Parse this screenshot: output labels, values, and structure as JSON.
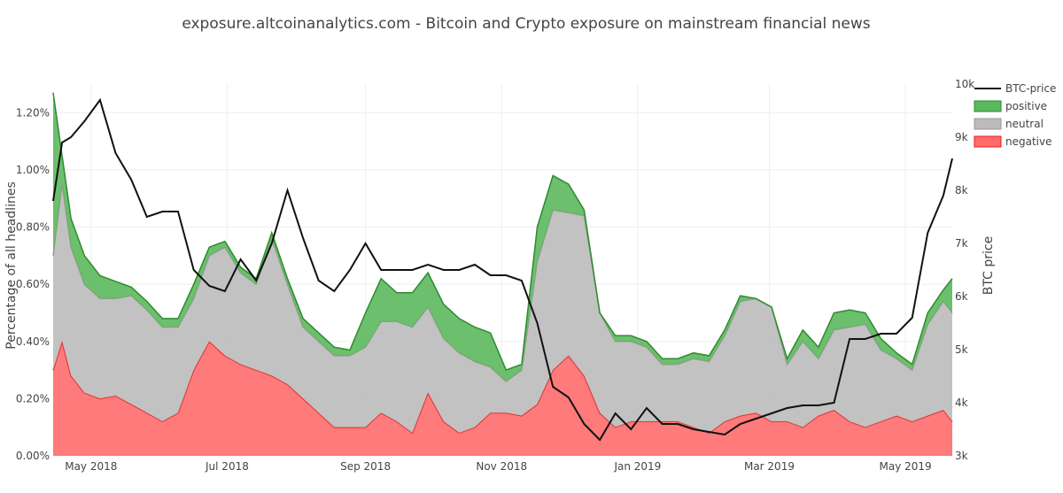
{
  "chart_data": {
    "type": "area",
    "title": "exposure.altcoinanalytics.com - Bitcoin and Crypto exposure on mainstream financial news",
    "ylabel": "Percentage of all headlines",
    "y2label": "BTC price",
    "x_ticks": [
      "May 2018",
      "Jul 2018",
      "Sep 2018",
      "Nov 2018",
      "Jan 2019",
      "Mar 2019",
      "May 2019"
    ],
    "y_ticks": [
      "0.00%",
      "0.20%",
      "0.40%",
      "0.60%",
      "0.80%",
      "1.00%",
      "1.20%"
    ],
    "y2_ticks": [
      "3k",
      "4k",
      "5k",
      "6k",
      "7k",
      "8k",
      "9k",
      "10k"
    ],
    "x_range": [
      "2018-04-14",
      "2019-05-22"
    ],
    "y_range": [
      0,
      1.3
    ],
    "y2_range": [
      3000,
      10000
    ],
    "x_tick_dates": [
      "2018-05-01",
      "2018-07-01",
      "2018-09-01",
      "2018-11-01",
      "2019-01-01",
      "2019-03-01",
      "2019-05-01"
    ],
    "legend_position": "top-right",
    "grid": true,
    "dates": [
      "2018-04-14",
      "2018-04-18",
      "2018-04-22",
      "2018-04-28",
      "2018-05-05",
      "2018-05-12",
      "2018-05-19",
      "2018-05-26",
      "2018-06-02",
      "2018-06-09",
      "2018-06-16",
      "2018-06-23",
      "2018-06-30",
      "2018-07-07",
      "2018-07-14",
      "2018-07-21",
      "2018-07-28",
      "2018-08-04",
      "2018-08-11",
      "2018-08-18",
      "2018-08-25",
      "2018-09-01",
      "2018-09-08",
      "2018-09-15",
      "2018-09-22",
      "2018-09-29",
      "2018-10-06",
      "2018-10-13",
      "2018-10-20",
      "2018-10-27",
      "2018-11-03",
      "2018-11-10",
      "2018-11-17",
      "2018-11-24",
      "2018-12-01",
      "2018-12-08",
      "2018-12-15",
      "2018-12-22",
      "2018-12-29",
      "2019-01-05",
      "2019-01-12",
      "2019-01-19",
      "2019-01-26",
      "2019-02-02",
      "2019-02-09",
      "2019-02-16",
      "2019-02-23",
      "2019-03-02",
      "2019-03-09",
      "2019-03-16",
      "2019-03-23",
      "2019-03-30",
      "2019-04-06",
      "2019-04-13",
      "2019-04-20",
      "2019-04-27",
      "2019-05-04",
      "2019-05-11",
      "2019-05-18",
      "2019-05-22"
    ],
    "series": [
      {
        "name": "negative",
        "color": "#ff6b6b",
        "values": [
          0.3,
          0.4,
          0.28,
          0.22,
          0.2,
          0.21,
          0.18,
          0.15,
          0.12,
          0.15,
          0.3,
          0.4,
          0.35,
          0.32,
          0.3,
          0.28,
          0.25,
          0.2,
          0.15,
          0.1,
          0.1,
          0.1,
          0.15,
          0.12,
          0.08,
          0.22,
          0.12,
          0.08,
          0.1,
          0.15,
          0.15,
          0.14,
          0.18,
          0.3,
          0.35,
          0.28,
          0.15,
          0.1,
          0.12,
          0.12,
          0.12,
          0.12,
          0.1,
          0.08,
          0.12,
          0.14,
          0.15,
          0.12,
          0.12,
          0.1,
          0.14,
          0.16,
          0.12,
          0.1,
          0.12,
          0.14,
          0.12,
          0.14,
          0.16,
          0.12
        ]
      },
      {
        "name": "neutral",
        "color": "#bbbbbb",
        "values": [
          0.4,
          0.55,
          0.45,
          0.38,
          0.35,
          0.34,
          0.38,
          0.36,
          0.33,
          0.3,
          0.25,
          0.3,
          0.38,
          0.32,
          0.3,
          0.48,
          0.35,
          0.25,
          0.25,
          0.25,
          0.25,
          0.28,
          0.32,
          0.35,
          0.37,
          0.3,
          0.29,
          0.28,
          0.23,
          0.16,
          0.11,
          0.16,
          0.5,
          0.56,
          0.5,
          0.56,
          0.35,
          0.3,
          0.28,
          0.26,
          0.2,
          0.2,
          0.24,
          0.25,
          0.3,
          0.4,
          0.4,
          0.4,
          0.2,
          0.3,
          0.2,
          0.28,
          0.33,
          0.36,
          0.25,
          0.2,
          0.18,
          0.32,
          0.38,
          0.38
        ]
      },
      {
        "name": "positive",
        "color": "#5cb85c",
        "values": [
          0.57,
          0.1,
          0.1,
          0.1,
          0.08,
          0.06,
          0.03,
          0.03,
          0.03,
          0.03,
          0.05,
          0.03,
          0.02,
          0.02,
          0.02,
          0.02,
          0.02,
          0.03,
          0.03,
          0.03,
          0.02,
          0.12,
          0.15,
          0.1,
          0.12,
          0.12,
          0.12,
          0.12,
          0.12,
          0.12,
          0.04,
          0.02,
          0.12,
          0.12,
          0.1,
          0.02,
          0.0,
          0.02,
          0.02,
          0.02,
          0.02,
          0.02,
          0.02,
          0.02,
          0.02,
          0.02,
          0.0,
          0.0,
          0.02,
          0.04,
          0.04,
          0.06,
          0.06,
          0.04,
          0.04,
          0.02,
          0.02,
          0.04,
          0.04,
          0.12
        ]
      },
      {
        "name": "BTC-price",
        "color": "#111111",
        "values": [
          7800,
          8900,
          9000,
          9300,
          9700,
          8700,
          8200,
          7500,
          7600,
          7600,
          6500,
          6200,
          6100,
          6700,
          6300,
          7000,
          8000,
          7100,
          6300,
          6100,
          6500,
          7000,
          6500,
          6500,
          6500,
          6600,
          6500,
          6500,
          6600,
          6400,
          6400,
          6300,
          5500,
          4300,
          4100,
          3600,
          3300,
          3800,
          3500,
          3900,
          3600,
          3600,
          3500,
          3450,
          3400,
          3600,
          3700,
          3800,
          3900,
          3950,
          3950,
          4000,
          5200,
          5200,
          5300,
          5300,
          5600,
          7200,
          7900,
          8600
        ]
      }
    ]
  }
}
